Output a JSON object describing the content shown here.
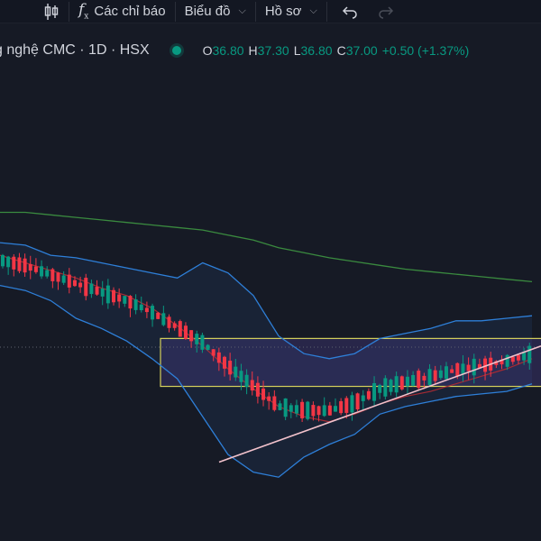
{
  "toolbar": {
    "indicators_label": "Các chỉ báo",
    "chart_label": "Biểu đồ",
    "profile_label": "Hồ sơ"
  },
  "legend": {
    "title": "g nghệ CMC · 1D · HSX",
    "o_key": "O",
    "o_val": "36.80",
    "h_key": "H",
    "h_val": "37.30",
    "l_key": "L",
    "l_val": "36.80",
    "c_key": "C",
    "c_val": "37.00",
    "change": "+0.50 (+1.37%)"
  },
  "colors": {
    "up": "#089981",
    "down": "#f23645",
    "bb": "#2e7fd8",
    "sma200": "#3a8a3f",
    "ma": "#a62a33",
    "box": "#d4d05c",
    "trend": "#f2c2cc"
  },
  "chart_data": {
    "type": "candlestick",
    "price_range": [
      30.5,
      44.8
    ],
    "sma_long": [
      42.1,
      42.1,
      42.0,
      41.9,
      41.8,
      41.7,
      41.6,
      41.5,
      41.4,
      41.2,
      41.0,
      40.7,
      40.5,
      40.3,
      40.15,
      40.0,
      39.85,
      39.75,
      39.65,
      39.55,
      39.45,
      39.35
    ],
    "bollinger_upper": [
      40.9,
      40.8,
      40.4,
      40.3,
      40.1,
      39.9,
      39.7,
      39.5,
      40.1,
      39.7,
      38.8,
      37.2,
      36.5,
      36.3,
      36.5,
      37.1,
      37.3,
      37.5,
      37.8,
      37.8,
      37.9,
      38.0
    ],
    "bollinger_lower": [
      39.2,
      39.0,
      38.6,
      37.9,
      37.5,
      37.0,
      36.3,
      35.5,
      34.0,
      32.5,
      31.8,
      31.6,
      32.4,
      32.9,
      33.3,
      34.1,
      34.4,
      34.6,
      34.8,
      34.9,
      35.0,
      35.3
    ],
    "moving_average": [
      40.4,
      40.1,
      39.8,
      39.5,
      39.1,
      38.8,
      38.3,
      37.6,
      36.8,
      35.9,
      35.1,
      34.4,
      34.0,
      33.8,
      34.1,
      34.5,
      34.8,
      35.0,
      35.3,
      35.6,
      35.9,
      36.3
    ],
    "range_box": [
      37.1,
      35.2
    ],
    "trend_line": [
      32.2,
      36.8
    ]
  }
}
